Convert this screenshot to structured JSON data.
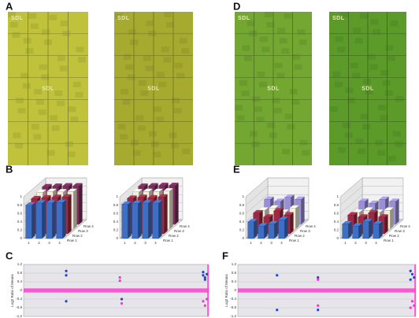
{
  "panel_labels": [
    "A",
    "B",
    "C",
    "D",
    "E",
    "F"
  ],
  "arrays": [
    {
      "color": "#bfc23a",
      "labels": [
        "SDL",
        "SDL"
      ]
    },
    {
      "color": "#a6ab2f",
      "labels": [
        "SDL",
        "SDL"
      ]
    },
    {
      "color": "#73a731",
      "labels": [
        "SDL",
        "SDL"
      ]
    },
    {
      "color": "#5c9a2a",
      "labels": [
        "SDL",
        "SDL"
      ]
    }
  ],
  "chart_data": [
    {
      "type": "bar3d",
      "ylim": [
        0,
        1
      ],
      "yticks": [
        0,
        0.2,
        0.4,
        0.6,
        0.8,
        1
      ],
      "categories": [
        "1",
        "2",
        "3",
        "4"
      ],
      "series": [
        {
          "name": "Row 1",
          "color": "#3d6fc4",
          "values": [
            0.8,
            0.85,
            0.85,
            0.86
          ]
        },
        {
          "name": "Row 2",
          "color": "#9c2a44",
          "values": [
            0.84,
            0.86,
            0.87,
            0.88
          ]
        },
        {
          "name": "Row 3",
          "color": "#f2f0d8",
          "values": [
            0.88,
            0.9,
            0.89,
            0.9
          ]
        },
        {
          "name": "Row 4",
          "color": "#7b2c5a",
          "values": [
            0.9,
            0.91,
            0.92,
            0.92
          ]
        }
      ]
    },
    {
      "type": "bar3d",
      "ylim": [
        0,
        1
      ],
      "yticks": [
        0,
        0.2,
        0.4,
        0.6,
        0.8,
        1
      ],
      "categories": [
        "1",
        "2",
        "3",
        "4"
      ],
      "series": [
        {
          "name": "Row 1",
          "color": "#3d6fc4",
          "values": [
            0.82,
            0.84,
            0.85,
            0.85
          ]
        },
        {
          "name": "Row 2",
          "color": "#9c2a44",
          "values": [
            0.85,
            0.87,
            0.86,
            0.88
          ]
        },
        {
          "name": "Row 3",
          "color": "#f2f0d8",
          "values": [
            0.89,
            0.9,
            0.9,
            0.91
          ]
        },
        {
          "name": "Row 4",
          "color": "#7b2c5a",
          "values": [
            0.91,
            0.92,
            0.93,
            0.93
          ]
        }
      ]
    },
    {
      "type": "bar3d",
      "ylim": [
        0,
        1
      ],
      "yticks": [
        0,
        0.2,
        0.4,
        0.6,
        0.8,
        1
      ],
      "categories": [
        "1",
        "2",
        "3",
        "4"
      ],
      "series": [
        {
          "name": "Row 1",
          "color": "#3d6fc4",
          "values": [
            0.4,
            0.3,
            0.35,
            0.45
          ]
        },
        {
          "name": "Row 2",
          "color": "#9c2a44",
          "values": [
            0.5,
            0.4,
            0.55,
            0.45
          ]
        },
        {
          "name": "Row 3",
          "color": "#f2f0d8",
          "values": [
            0.45,
            0.5,
            0.4,
            0.5
          ]
        },
        {
          "name": "Row 4",
          "color": "#9a8fd6",
          "values": [
            0.6,
            0.55,
            0.65,
            0.6
          ]
        }
      ]
    },
    {
      "type": "bar3d",
      "ylim": [
        0,
        1
      ],
      "yticks": [
        0,
        0.2,
        0.4,
        0.6,
        0.8,
        1
      ],
      "categories": [
        "1",
        "2",
        "3",
        "4"
      ],
      "series": [
        {
          "name": "Row 1",
          "color": "#3d6fc4",
          "values": [
            0.35,
            0.3,
            0.4,
            0.35
          ]
        },
        {
          "name": "Row 2",
          "color": "#9c2a44",
          "values": [
            0.45,
            0.4,
            0.5,
            0.4
          ]
        },
        {
          "name": "Row 3",
          "color": "#f2f0d8",
          "values": [
            0.4,
            0.45,
            0.4,
            0.45
          ]
        },
        {
          "name": "Row 4",
          "color": "#9a8fd6",
          "values": [
            0.55,
            0.5,
            0.6,
            0.55
          ]
        }
      ]
    },
    {
      "type": "scatter",
      "y_label": "Log2 Ratio of Means",
      "xlim": [
        0,
        100
      ],
      "ylim": [
        -1.2,
        1.2
      ],
      "yticks": [
        1.2,
        0.8,
        0.4,
        0,
        -0.4,
        -0.8,
        -1.2
      ],
      "grid": true,
      "background": "#e6e6ea",
      "band_color": "#ff40d0",
      "series": [
        {
          "color": "#2444c8",
          "x": [
            23,
            23,
            23,
            53,
            97,
            97,
            98,
            99,
            98
          ],
          "values": [
            0.9,
            0.7,
            -0.5,
            -0.4,
            0.85,
            0.7,
            0.6,
            0.75,
            0.5
          ]
        },
        {
          "color": "#ff30d0",
          "x": [
            52,
            52,
            53,
            97,
            98,
            99
          ],
          "values": [
            0.6,
            0.45,
            -0.6,
            -0.5,
            -0.7,
            -0.4
          ]
        }
      ]
    },
    {
      "type": "scatter",
      "y_label": "Log2 Ratio of Means",
      "xlim": [
        0,
        100
      ],
      "ylim": [
        -1.2,
        1.2
      ],
      "yticks": [
        1.2,
        0.8,
        0.4,
        0,
        -0.4,
        -0.8,
        -1.2
      ],
      "grid": true,
      "background": "#e6e6ea",
      "band_color": "#ff40d0",
      "series": [
        {
          "color": "#2444c8",
          "x": [
            22,
            22,
            45,
            45,
            97,
            98,
            99,
            97
          ],
          "values": [
            0.7,
            -0.9,
            0.6,
            -0.9,
            0.9,
            0.75,
            0.6,
            0.5
          ]
        },
        {
          "color": "#ff30d0",
          "x": [
            45,
            45,
            98,
            99,
            97
          ],
          "values": [
            0.5,
            -0.7,
            -0.5,
            -0.7,
            -0.8
          ]
        }
      ]
    }
  ]
}
